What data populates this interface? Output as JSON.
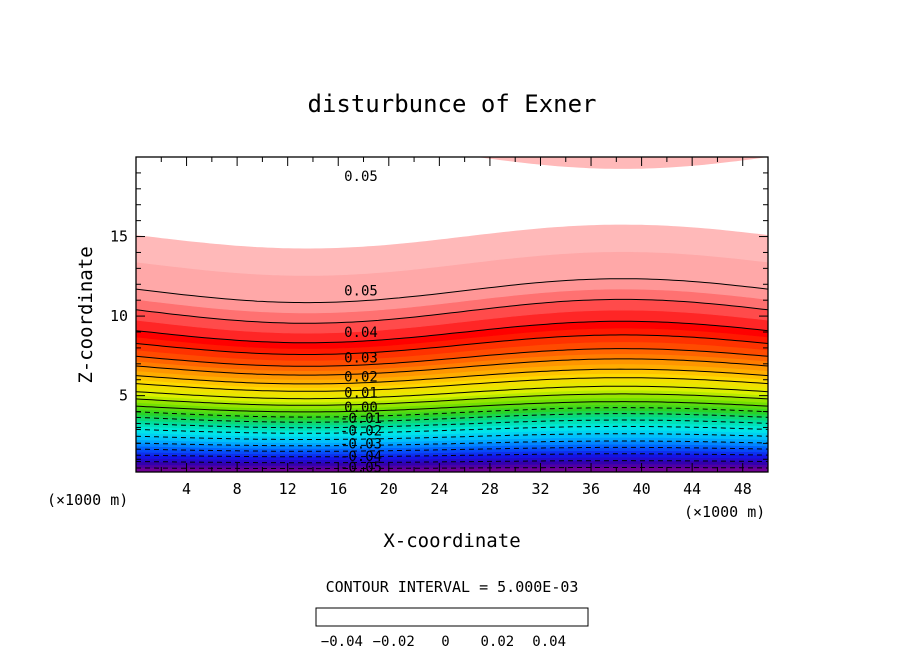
{
  "chart_data": {
    "type": "contour",
    "title": "disturbunce of Exner",
    "xlabel": "X-coordinate",
    "ylabel": "Z-coordinate",
    "x_unit": "(×1000 m)",
    "x_unit_left": "(×1000 m)",
    "xlim": [
      0,
      50
    ],
    "ylim": [
      0.2,
      20
    ],
    "x_ticks": [
      4,
      8,
      12,
      16,
      20,
      24,
      28,
      32,
      36,
      40,
      44,
      48
    ],
    "y_ticks": [
      5,
      10,
      15
    ],
    "contour_interval_text": "CONTOUR INTERVAL = 5.000E-03",
    "value_range": [
      -0.05,
      0.055
    ],
    "contour_labels": [
      {
        "text": "0.05",
        "value": 0.05,
        "z_at_label": 18.8
      },
      {
        "text": "0.05",
        "value": 0.05,
        "z_at_label": 11.6
      },
      {
        "text": "0.04",
        "value": 0.04,
        "z_at_label": 9.0
      },
      {
        "text": "0.03",
        "value": 0.03,
        "z_at_label": 7.4
      },
      {
        "text": "0.02",
        "value": 0.02,
        "z_at_label": 6.2
      },
      {
        "text": "0.01",
        "value": 0.01,
        "z_at_label": 5.2
      },
      {
        "text": "0.00",
        "value": 0.0,
        "z_at_label": 4.3
      },
      {
        "text": "-0.01",
        "value": -0.01,
        "z_at_label": 3.6
      },
      {
        "text": "-0.02",
        "value": -0.02,
        "z_at_label": 2.8
      },
      {
        "text": "-0.03",
        "value": -0.03,
        "z_at_label": 2.0
      },
      {
        "text": "-0.04",
        "value": -0.04,
        "z_at_label": 1.2
      },
      {
        "text": "-0.05",
        "value": -0.05,
        "z_at_label": 0.5
      }
    ],
    "colorbar": {
      "range": [
        -0.05,
        0.055
      ],
      "ticks": [
        {
          "value": -0.04,
          "label": "−0.04"
        },
        {
          "value": -0.02,
          "label": "−0.02"
        },
        {
          "value": 0,
          "label": "0"
        },
        {
          "value": 0.02,
          "label": "0.02"
        },
        {
          "value": 0.04,
          "label": "0.04"
        }
      ]
    }
  }
}
